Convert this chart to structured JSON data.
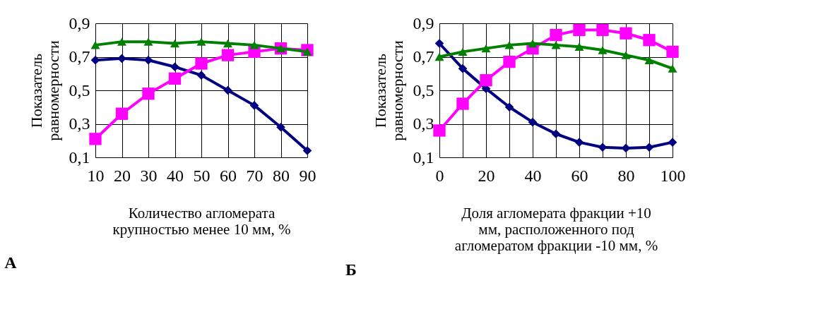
{
  "chart_data": [
    {
      "type": "line",
      "xlabel": "Количество агломерата\nкрупностью менее 10 мм, %",
      "ylabel": "Показатель\nравномерности",
      "annotations": [
        "А"
      ],
      "x": [
        10,
        20,
        30,
        40,
        50,
        60,
        70,
        80,
        90
      ],
      "xlim": [
        10,
        90
      ],
      "xticks": [
        10,
        20,
        30,
        40,
        50,
        60,
        70,
        80,
        90
      ],
      "ylim": [
        0.1,
        0.9
      ],
      "yticks": [
        {
          "value": 0.1,
          "label": "0,1"
        },
        {
          "value": 0.3,
          "label": "0,3"
        },
        {
          "value": 0.5,
          "label": "0,5"
        },
        {
          "value": 0.7,
          "label": "0,7"
        },
        {
          "value": 0.9,
          "label": "0,9"
        }
      ],
      "grid": true,
      "series": [
        {
          "color": "#000080",
          "marker": "diamond",
          "values": [
            0.68,
            0.69,
            0.68,
            0.64,
            0.59,
            0.5,
            0.41,
            0.28,
            0.14
          ]
        },
        {
          "color": "#ff00ff",
          "marker": "square",
          "values": [
            0.21,
            0.36,
            0.48,
            0.57,
            0.66,
            0.71,
            0.73,
            0.75,
            0.74
          ]
        },
        {
          "color": "#008000",
          "marker": "triangle",
          "values": [
            0.77,
            0.79,
            0.79,
            0.78,
            0.79,
            0.78,
            0.77,
            0.75,
            0.73
          ]
        }
      ]
    },
    {
      "type": "line",
      "xlabel": "Доля агломерата фракции +10\nмм, расположенного под\nагломератом фракции -10 мм, %",
      "ylabel": "Показатель\nравномерности",
      "annotations": [
        "Б"
      ],
      "x": [
        0,
        10,
        20,
        30,
        40,
        50,
        60,
        70,
        80,
        90,
        100
      ],
      "xlim": [
        0,
        100
      ],
      "xticks": [
        0,
        {
          "value": 10,
          "label": null
        },
        20,
        {
          "value": 30,
          "label": null
        },
        40,
        {
          "value": 50,
          "label": null
        },
        60,
        {
          "value": 70,
          "label": null
        },
        80,
        {
          "value": 90,
          "label": null
        },
        100
      ],
      "ylim": [
        0.1,
        0.9
      ],
      "yticks": [
        {
          "value": 0.1,
          "label": "0,1"
        },
        {
          "value": 0.3,
          "label": "0,3"
        },
        {
          "value": 0.5,
          "label": "0,5"
        },
        {
          "value": 0.7,
          "label": "0,7"
        },
        {
          "value": 0.9,
          "label": "0,9"
        }
      ],
      "grid": true,
      "series": [
        {
          "color": "#000080",
          "marker": "diamond",
          "values": [
            0.78,
            0.63,
            0.51,
            0.4,
            0.31,
            0.24,
            0.19,
            0.16,
            0.155,
            0.16,
            0.19
          ]
        },
        {
          "color": "#ff00ff",
          "marker": "square",
          "values": [
            0.26,
            0.42,
            0.56,
            0.67,
            0.75,
            0.83,
            0.86,
            0.86,
            0.84,
            0.8,
            0.73
          ]
        },
        {
          "color": "#008000",
          "marker": "triangle",
          "values": [
            0.7,
            0.73,
            0.75,
            0.77,
            0.78,
            0.77,
            0.76,
            0.74,
            0.71,
            0.68,
            0.63
          ]
        }
      ]
    }
  ]
}
